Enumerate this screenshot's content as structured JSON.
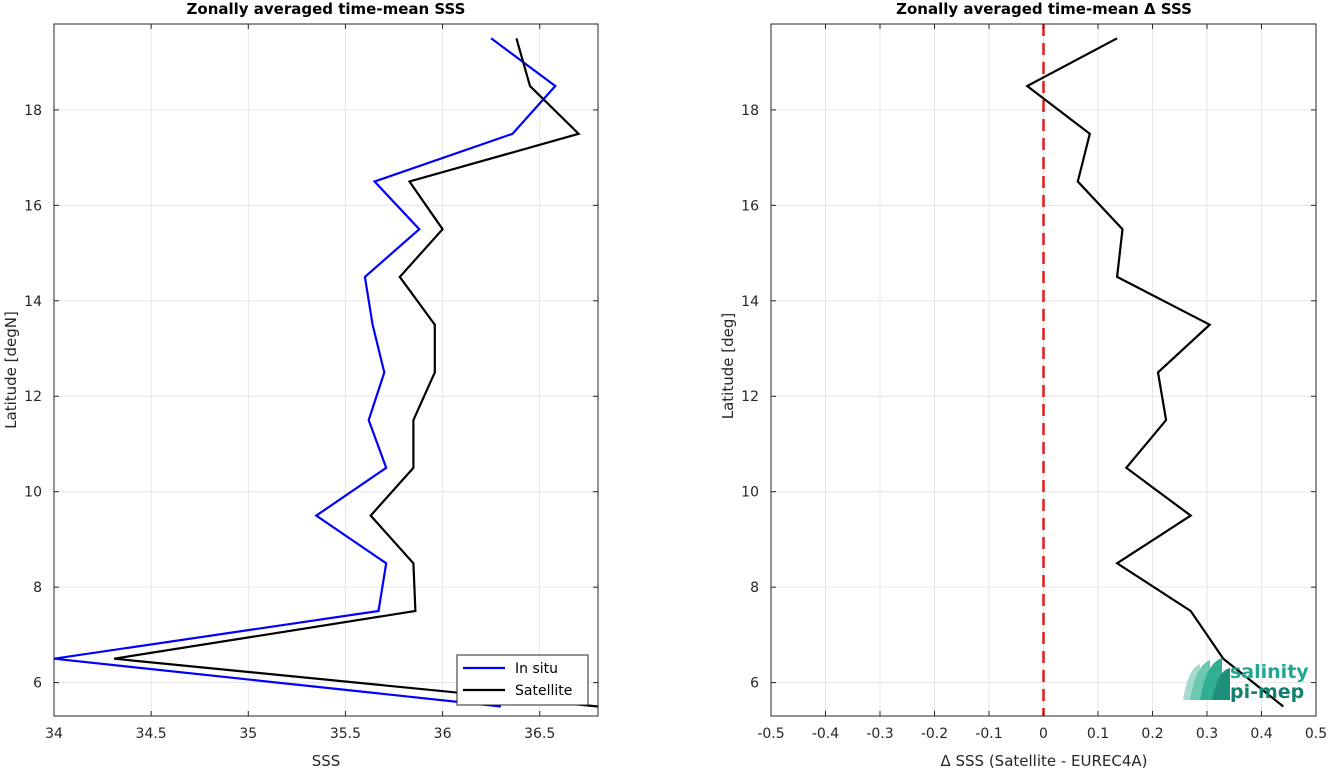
{
  "chart_data": [
    {
      "type": "line",
      "title": "Zonally averaged time-mean SSS",
      "xlabel": "SSS",
      "ylabel": "Latitude [degN]",
      "xlim": [
        34,
        36.8
      ],
      "ylim": [
        5.3,
        19.8
      ],
      "xticks": [
        34,
        34.5,
        35,
        35.5,
        36,
        36.5
      ],
      "xtick_labels": [
        "34",
        "34.5",
        "35",
        "35.5",
        "36",
        "36.5"
      ],
      "yticks": [
        6,
        8,
        10,
        12,
        14,
        16,
        18
      ],
      "ytick_labels": [
        "6",
        "8",
        "10",
        "12",
        "14",
        "16",
        "18"
      ],
      "grid": true,
      "legend_position": "bottom-right",
      "series": [
        {
          "name": "In situ",
          "color": "#0000ff",
          "points": [
            [
              36.25,
              19.5
            ],
            [
              36.58,
              18.5
            ],
            [
              36.36,
              17.5
            ],
            [
              35.65,
              16.5
            ],
            [
              35.88,
              15.5
            ],
            [
              35.6,
              14.5
            ],
            [
              35.64,
              13.5
            ],
            [
              35.7,
              12.5
            ],
            [
              35.62,
              11.5
            ],
            [
              35.71,
              10.5
            ],
            [
              35.35,
              9.5
            ],
            [
              35.71,
              8.5
            ],
            [
              35.67,
              7.5
            ],
            [
              34.0,
              6.5
            ],
            [
              36.3,
              5.5
            ]
          ]
        },
        {
          "name": "Satellite",
          "color": "#000000",
          "points": [
            [
              36.38,
              19.5
            ],
            [
              36.45,
              18.5
            ],
            [
              36.7,
              17.5
            ],
            [
              35.83,
              16.5
            ],
            [
              36.0,
              15.5
            ],
            [
              35.78,
              14.5
            ],
            [
              35.96,
              13.5
            ],
            [
              35.96,
              12.5
            ],
            [
              35.85,
              11.5
            ],
            [
              35.85,
              10.5
            ],
            [
              35.63,
              9.5
            ],
            [
              35.85,
              8.5
            ],
            [
              35.86,
              7.5
            ],
            [
              34.31,
              6.5
            ],
            [
              36.8,
              5.5
            ]
          ]
        }
      ]
    },
    {
      "type": "line",
      "title": "Zonally averaged time-mean Δ SSS",
      "xlabel": "Δ SSS (Satellite - EUREC4A)",
      "ylabel": "Latitude [deg]",
      "xlim": [
        -0.5,
        0.5
      ],
      "ylim": [
        5.3,
        19.8
      ],
      "xticks": [
        -0.5,
        -0.4,
        -0.3,
        -0.2,
        -0.1,
        0,
        0.1,
        0.2,
        0.3,
        0.4,
        0.5
      ],
      "xtick_labels": [
        "-0.5",
        "-0.4",
        "-0.3",
        "-0.2",
        "-0.1",
        "0",
        "0.1",
        "0.2",
        "0.3",
        "0.4",
        "0.5"
      ],
      "yticks": [
        6,
        8,
        10,
        12,
        14,
        16,
        18
      ],
      "ytick_labels": [
        "6",
        "8",
        "10",
        "12",
        "14",
        "16",
        "18"
      ],
      "grid": true,
      "reference_line": {
        "x": 0,
        "color": "#e41a1c",
        "style": "dashed"
      },
      "series": [
        {
          "color": "#000000",
          "points": [
            [
              0.135,
              19.5
            ],
            [
              -0.03,
              18.5
            ],
            [
              0.085,
              17.5
            ],
            [
              0.063,
              16.5
            ],
            [
              0.145,
              15.5
            ],
            [
              0.135,
              14.5
            ],
            [
              0.305,
              13.5
            ],
            [
              0.21,
              12.5
            ],
            [
              0.225,
              11.5
            ],
            [
              0.152,
              10.5
            ],
            [
              0.27,
              9.5
            ],
            [
              0.135,
              8.5
            ],
            [
              0.27,
              7.5
            ],
            [
              0.33,
              6.5
            ],
            [
              0.44,
              5.5
            ]
          ]
        }
      ]
    }
  ],
  "logo": {
    "line1": "salinity",
    "line2": "pi-mep",
    "color": "#1fa88f"
  }
}
